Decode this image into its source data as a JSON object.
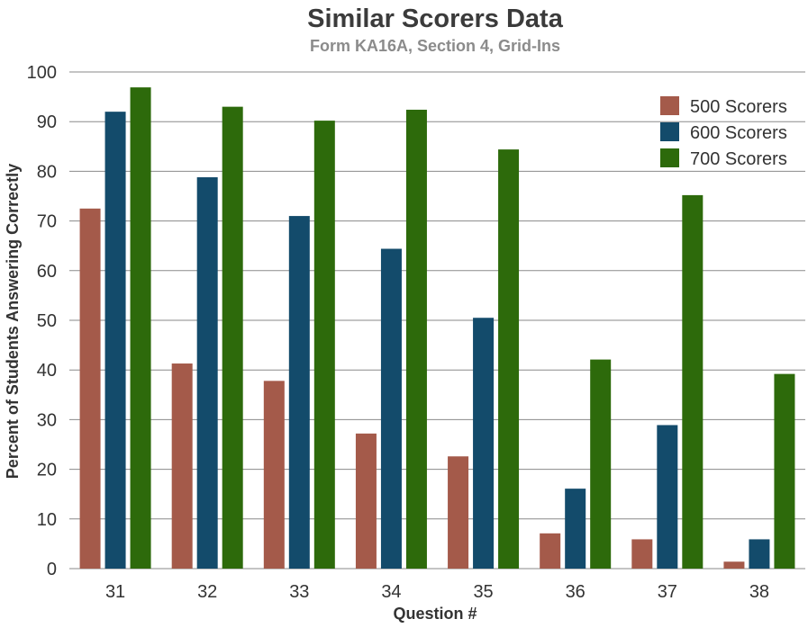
{
  "chart_data": {
    "type": "bar",
    "title": "Similar Scorers Data",
    "subtitle": "Form KA16A, Section 4, Grid-Ins",
    "xlabel": "Question #",
    "ylabel": "Percent of Students Answering Correctly",
    "categories": [
      "31",
      "32",
      "33",
      "34",
      "35",
      "36",
      "37",
      "38"
    ],
    "ylim": [
      0,
      100
    ],
    "yticks": [
      0,
      10,
      20,
      30,
      40,
      50,
      60,
      70,
      80,
      90,
      100
    ],
    "grid": true,
    "legend_position": "top-right",
    "series": [
      {
        "name": "500 Scorers",
        "color": "#a45a4a",
        "values": [
          72.5,
          41.3,
          37.8,
          27.2,
          22.6,
          7.1,
          5.9,
          1.4
        ]
      },
      {
        "name": "600 Scorers",
        "color": "#134b6b",
        "values": [
          92,
          78.8,
          71,
          64.4,
          50.5,
          16.1,
          28.9,
          5.9
        ]
      },
      {
        "name": "700 Scorers",
        "color": "#2d6a0b",
        "values": [
          96.9,
          93,
          90.2,
          92.4,
          84.4,
          42.1,
          75.2,
          39.2
        ]
      }
    ]
  }
}
